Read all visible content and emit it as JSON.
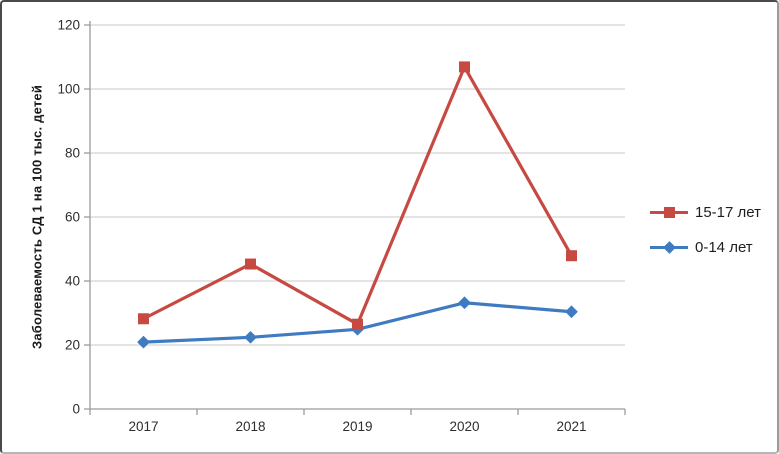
{
  "chart_data": {
    "type": "line",
    "title": "",
    "xlabel": "",
    "ylabel": "Заболеваемость СД 1 на 100 тыс. детей",
    "categories": [
      "2017",
      "2018",
      "2019",
      "2020",
      "2021"
    ],
    "series": [
      {
        "name": "15-17 лет",
        "color": "#c64a42",
        "marker": "square",
        "values": [
          28.2,
          45.3,
          26.5,
          106.9,
          47.9
        ]
      },
      {
        "name": "0-14 лет",
        "color": "#3e7bc1",
        "marker": "diamond",
        "values": [
          20.9,
          22.4,
          24.9,
          33.2,
          30.4
        ]
      }
    ],
    "ylim": [
      0,
      120
    ],
    "yticks": [
      0,
      20,
      40,
      60,
      80,
      100,
      120
    ],
    "grid": true,
    "legend_position": "right"
  },
  "colors": {
    "gridline": "#c8c8c8",
    "axis_line": "#9b9b9b",
    "tick_mark": "#9b9b9b",
    "tick_text": "#2e2e2e",
    "background": "#ffffff"
  }
}
